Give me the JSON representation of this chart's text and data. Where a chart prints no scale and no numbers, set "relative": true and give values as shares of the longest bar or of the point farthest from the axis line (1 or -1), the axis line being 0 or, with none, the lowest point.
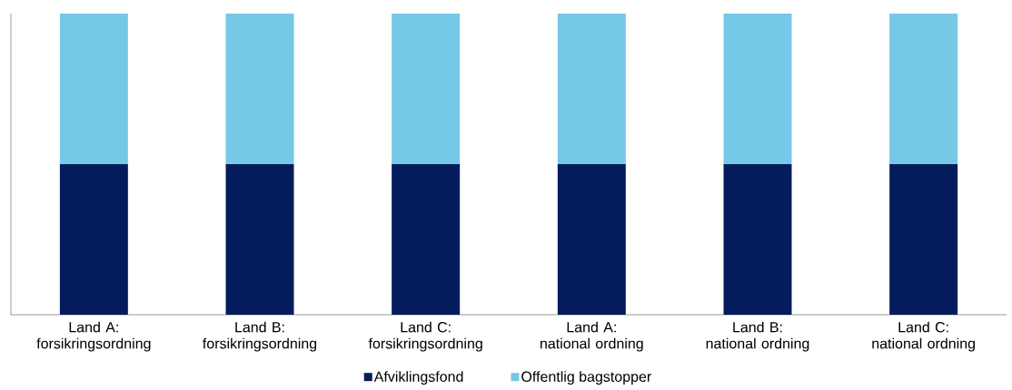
{
  "chart_data": {
    "type": "bar",
    "stacked": true,
    "relative": true,
    "legend": "bottom",
    "categories": [
      "Land A: forsikringsordning",
      "Land B: forsikringsordning",
      "Land C: forsikringsordning",
      "Land A: national ordning",
      "Land B: national ordning",
      "Land C: national ordning"
    ],
    "series": [
      {
        "name": "Afviklingsfond",
        "color": "#041c5c",
        "values": [
          0.5,
          0.5,
          0.5,
          0.5,
          0.5,
          0.5
        ]
      },
      {
        "name": "Offentlig bagstopper",
        "color": "#75c8e6",
        "values": [
          0.5,
          0.5,
          0.5,
          0.5,
          0.5,
          0.5
        ]
      }
    ]
  }
}
